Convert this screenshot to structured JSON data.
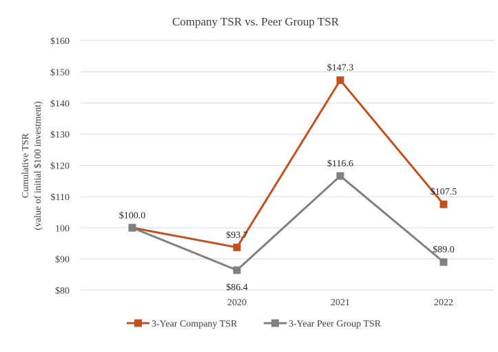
{
  "chart_data": {
    "type": "line",
    "title": "Company TSR vs. Peer Group TSR",
    "ylabel_lines": [
      "Cumulative TSR",
      "(value of initial $100 investment)"
    ],
    "xlabel": "",
    "categories": [
      "",
      "2020",
      "2021",
      "2022"
    ],
    "ylim": [
      80,
      160
    ],
    "yticks": [
      80,
      90,
      100,
      110,
      120,
      130,
      140,
      150,
      160
    ],
    "ytick_labels": [
      "$80",
      "$90",
      "100",
      "$110",
      "$120",
      "$130",
      "$140",
      "$150",
      "$160"
    ],
    "grid": true,
    "legend_position": "bottom",
    "series": [
      {
        "name": "3-Year Company TSR",
        "color": "#c0501f",
        "values": [
          100.0,
          93.7,
          147.3,
          107.5
        ],
        "labels": [
          "$100.0",
          "$93.7",
          "$147.3",
          "$107.5"
        ],
        "label_side": [
          "above",
          "above",
          "above",
          "above"
        ]
      },
      {
        "name": "3-Year Peer Group TSR",
        "color": "#808080",
        "values": [
          100.0,
          86.4,
          116.6,
          89.0
        ],
        "labels": [
          "",
          "$86.4",
          "$116.6",
          "$89.0"
        ],
        "label_side": [
          "above",
          "below",
          "above",
          "above"
        ]
      }
    ]
  }
}
